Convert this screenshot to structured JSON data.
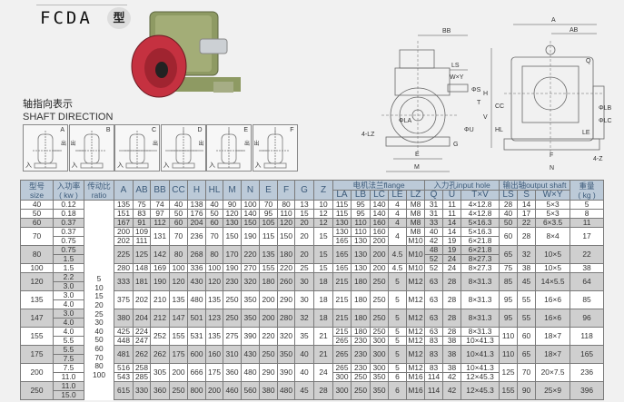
{
  "header": {
    "title": "FCDA",
    "title_suffix": "型"
  },
  "shaft_direction": {
    "title_cn": "轴指向表示",
    "title_en": "SHAFT DIRECTION",
    "in_label": "入",
    "out_label": "出",
    "boxes": [
      "A",
      "B",
      "C",
      "D",
      "E",
      "F"
    ]
  },
  "drawing_labels": {
    "bb": "BB",
    "ls": "LS",
    "wy": "W×Y",
    "s": "ΦS",
    "t": "T",
    "v": "V",
    "u": "ΦU",
    "la": "ΦLA",
    "lz": "4-LZ",
    "g": "G",
    "e": "E",
    "m": "M",
    "a": "A",
    "ab": "AB",
    "q": "Q",
    "h": "H",
    "cc": "CC",
    "hl": "HL",
    "lb": "ΦLB",
    "lc": "ΦLC",
    "le": "LE",
    "f": "F",
    "n": "N",
    "z": "4-Z"
  },
  "table": {
    "headers": {
      "size": [
        "型号",
        "size"
      ],
      "kw": [
        "入功率",
        "( kw )"
      ],
      "ratio": [
        "传动比",
        "ratio"
      ],
      "dims": [
        "A",
        "AB",
        "BB",
        "CC",
        "H",
        "HL",
        "M",
        "N",
        "E",
        "F",
        "G",
        "Z"
      ],
      "flange": "电机法兰flange",
      "flange_cols": [
        "LA",
        "LB",
        "LC",
        "LE",
        "LZ"
      ],
      "input": "入力孔input hole",
      "input_cols": [
        "Q",
        "U",
        "T×V"
      ],
      "output": "输出轴output shaft",
      "output_cols": [
        "LS",
        "S",
        "W×Y"
      ],
      "weight": [
        "重量",
        "( kg )"
      ]
    },
    "ratios": [
      "5",
      "10",
      "15",
      "20",
      "25",
      "30",
      "40",
      "50",
      "60",
      "70",
      "80",
      "100"
    ],
    "rows": [
      {
        "size": "40",
        "kw": [
          "0.12"
        ],
        "v": [
          "135",
          "75",
          "74",
          "40",
          "138",
          "40",
          "90",
          "100",
          "70",
          "80",
          "13",
          "10",
          "115",
          "95",
          "140",
          "4",
          "M8",
          "31",
          "11",
          "4×12.8",
          "28",
          "14",
          "5×3",
          "5"
        ]
      },
      {
        "size": "50",
        "kw": [
          "0.18"
        ],
        "v": [
          "151",
          "83",
          "97",
          "50",
          "176",
          "50",
          "120",
          "140",
          "95",
          "110",
          "15",
          "12",
          "115",
          "95",
          "140",
          "4",
          "M8",
          "31",
          "11",
          "4×12.8",
          "40",
          "17",
          "5×3",
          "8"
        ]
      },
      {
        "size": "60",
        "kw": [
          "0.37"
        ],
        "v": [
          "167",
          "91",
          "112",
          "60",
          "204",
          "60",
          "130",
          "150",
          "105",
          "120",
          "20",
          "12",
          "130",
          "110",
          "160",
          "4",
          "M8",
          "33",
          "14",
          "5×16.3",
          "50",
          "22",
          "6×3.5",
          "11"
        ]
      },
      {
        "size": "70",
        "kw": [
          "0.37",
          "0.75"
        ],
        "v": [
          [
            "200",
            "202"
          ],
          [
            "109",
            "111"
          ],
          "131",
          "70",
          "236",
          "70",
          "150",
          "190",
          "115",
          "150",
          "20",
          "15",
          [
            "130",
            "165"
          ],
          [
            "110",
            "130"
          ],
          [
            "160",
            "200"
          ],
          "4",
          [
            "M8",
            "M10"
          ],
          [
            "40",
            "42"
          ],
          [
            "14",
            "19"
          ],
          [
            "5×16.3",
            "6×21.8"
          ],
          "60",
          "28",
          "8×4",
          "17"
        ]
      },
      {
        "size": "80",
        "kw": [
          "0.75",
          "1.5"
        ],
        "v": [
          "225",
          "125",
          "142",
          "80",
          "268",
          "80",
          "170",
          "220",
          "135",
          "180",
          "20",
          "15",
          "165",
          "130",
          "200",
          "4.5",
          "M10",
          [
            "48",
            "52"
          ],
          [
            "19",
            "24"
          ],
          [
            "6×21.8",
            "8×27.3"
          ],
          "65",
          "32",
          "10×5",
          "22"
        ]
      },
      {
        "size": "100",
        "kw": [
          "1.5"
        ],
        "v": [
          "280",
          "148",
          "169",
          "100",
          "336",
          "100",
          "190",
          "270",
          "155",
          "220",
          "25",
          "15",
          "165",
          "130",
          "200",
          "4.5",
          "M10",
          "52",
          "24",
          "8×27.3",
          "75",
          "38",
          "10×5",
          "38"
        ]
      },
      {
        "size": "120",
        "kw": [
          "2.2",
          "3.0"
        ],
        "v": [
          "333",
          "181",
          "190",
          "120",
          "430",
          "120",
          "230",
          "320",
          "180",
          "260",
          "30",
          "18",
          "215",
          "180",
          "250",
          "5",
          "M12",
          "63",
          "28",
          "8×31.3",
          "85",
          "45",
          "14×5.5",
          "64"
        ]
      },
      {
        "size": "135",
        "kw": [
          "3.0",
          "4.0"
        ],
        "v": [
          "375",
          "202",
          "210",
          "135",
          "480",
          "135",
          "250",
          "350",
          "200",
          "290",
          "30",
          "18",
          "215",
          "180",
          "250",
          "5",
          "M12",
          "63",
          "28",
          "8×31.3",
          "95",
          "55",
          "16×6",
          "85"
        ]
      },
      {
        "size": "147",
        "kw": [
          "3.0",
          "4.0"
        ],
        "v": [
          "380",
          "204",
          "212",
          "147",
          "501",
          "123",
          "250",
          "350",
          "200",
          "280",
          "32",
          "18",
          "215",
          "180",
          "250",
          "5",
          "M12",
          "63",
          "28",
          "8×31.3",
          "95",
          "55",
          "16×6",
          "96"
        ]
      },
      {
        "size": "155",
        "kw": [
          "4.0",
          "5.5"
        ],
        "v": [
          [
            "425",
            "448"
          ],
          [
            "224",
            "247"
          ],
          "252",
          "155",
          "531",
          "135",
          "275",
          "390",
          "220",
          "320",
          "35",
          "21",
          [
            "215",
            "265"
          ],
          [
            "180",
            "230"
          ],
          [
            "250",
            "300"
          ],
          [
            "5",
            "5"
          ],
          [
            "M12",
            "M12"
          ],
          [
            "63",
            "83"
          ],
          [
            "28",
            "38"
          ],
          [
            "8×31.3",
            "10×41.3"
          ],
          "110",
          "60",
          "18×7",
          "118"
        ]
      },
      {
        "size": "175",
        "kw": [
          "5.5",
          "7.5"
        ],
        "v": [
          "481",
          "262",
          "262",
          "175",
          "600",
          "160",
          "310",
          "430",
          "250",
          "350",
          "40",
          "21",
          "265",
          "230",
          "300",
          "5",
          "M12",
          "83",
          "38",
          "10×41.3",
          "110",
          "65",
          "18×7",
          "165"
        ]
      },
      {
        "size": "200",
        "kw": [
          "7.5",
          "11.0"
        ],
        "v": [
          [
            "516",
            "543"
          ],
          [
            "258",
            "285"
          ],
          "305",
          "200",
          "666",
          "175",
          "360",
          "480",
          "290",
          "390",
          "40",
          "24",
          [
            "265",
            "300"
          ],
          [
            "230",
            "250"
          ],
          [
            "300",
            "350"
          ],
          [
            "5",
            "6"
          ],
          [
            "M12",
            "M16"
          ],
          [
            "83",
            "114"
          ],
          [
            "38",
            "42"
          ],
          [
            "10×41.3",
            "12×45.3"
          ],
          "125",
          "70",
          "20×7.5",
          "236"
        ]
      },
      {
        "size": "250",
        "kw": [
          "11.0",
          "15.0"
        ],
        "v": [
          "615",
          "330",
          "360",
          "250",
          "800",
          "200",
          "460",
          "560",
          "380",
          "480",
          "45",
          "28",
          "300",
          "250",
          "350",
          "6",
          "M16",
          "114",
          "42",
          "12×45.3",
          "155",
          "90",
          "25×9",
          "396"
        ]
      }
    ]
  }
}
